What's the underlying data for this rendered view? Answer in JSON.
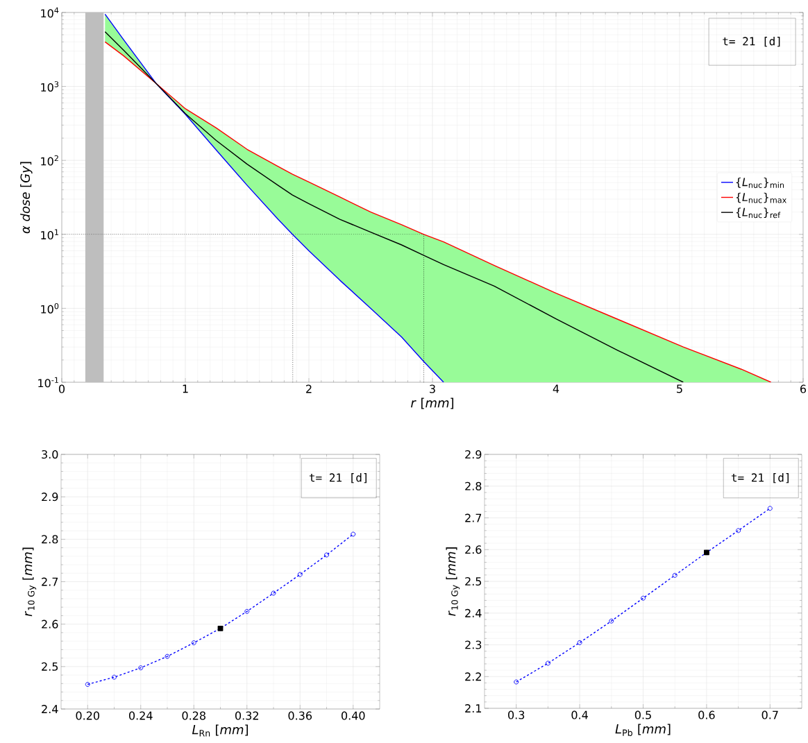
{
  "chart_data": [
    {
      "type": "line",
      "xlabel": "*r*  [*mm*]",
      "ylabel": "*α dose*  [*Gy*]",
      "log": "y",
      "xlim": [
        0,
        6
      ],
      "ylim": [
        0.1,
        10000
      ],
      "xticks": [
        0,
        1,
        2,
        3,
        4,
        5,
        6
      ],
      "yticks": [
        {
          "value": 0.1,
          "label": "10$^{-1}$"
        },
        {
          "value": 1,
          "label": "10$^{0}$"
        },
        {
          "value": 10,
          "label": "10$^{1}$"
        },
        {
          "value": 100,
          "label": "10$^{2}$"
        },
        {
          "value": 1000,
          "label": "10$^{3}$"
        },
        {
          "value": 10000,
          "label": "10$^{4}$"
        }
      ],
      "grid": true,
      "legend": "right",
      "annotations": [
        "t= 21 [d]"
      ],
      "bands": [
        {
          "axis": "x",
          "from": 0.19,
          "to": 0.34,
          "color": "#bebebe"
        }
      ],
      "ref_lines": [
        {
          "axis": "y",
          "value": 10,
          "color": "#000000",
          "line_style": "dotted"
        },
        {
          "axis": "x",
          "value": 1.87,
          "color": "#000000",
          "line_style": "dotted"
        },
        {
          "axis": "x",
          "value": 2.93,
          "color": "#000000",
          "line_style": "dotted"
        }
      ],
      "series": [
        {
          "name": "{*L*$_{nuc}$}$_{min}$",
          "color": "#0000ff",
          "values": [
            9500,
            4300,
            1100,
            420,
            138,
            46,
            16,
            10,
            6.0,
            2.4,
            1.0,
            0.41,
            0.19,
            0.1,
            null,
            null,
            null,
            null,
            null,
            null
          ]
        },
        {
          "name": "{*L*$_{nuc}$}$_{max}$",
          "color": "#ff0000",
          "values": [
            4000,
            2600,
            1100,
            500,
            275,
            141,
            83,
            65,
            51,
            32,
            20,
            13.5,
            10,
            7.9,
            3.8,
            1.6,
            0.71,
            0.3,
            0.15,
            0.1
          ]
        },
        {
          "name": "{*L*$_{nuc}$}$_{ref}$",
          "color": "#000000",
          "values": [
            5500,
            3100,
            1100,
            430,
            186,
            89,
            46,
            34,
            26,
            16,
            10.7,
            7.2,
            5.2,
            3.9,
            2.0,
            0.72,
            0.27,
            0.1,
            null,
            null
          ],
          "lower": [
            9500,
            4300,
            1100,
            420,
            138,
            46,
            16,
            10,
            6.0,
            2.4,
            1.0,
            0.41,
            0.19,
            0.1,
            0.1,
            0.1,
            0.1,
            0.1,
            0.1,
            0.1
          ],
          "upper": [
            4000,
            2600,
            1100,
            500,
            275,
            141,
            83,
            65,
            51,
            32,
            20,
            13.5,
            10,
            7.9,
            3.8,
            1.6,
            0.71,
            0.3,
            0.15,
            0.1
          ]
        }
      ],
      "x": [
        0.35,
        0.5,
        0.763,
        1.0,
        1.25,
        1.5,
        1.75,
        1.867,
        2.0,
        2.25,
        2.5,
        2.75,
        2.93,
        3.09,
        3.5,
        4.0,
        4.5,
        5.03,
        5.5,
        5.74
      ]
    },
    {
      "type": "line",
      "xlabel": "*L*$_{Rn}$  [*mm*]",
      "ylabel": "*r*$_{10 Gy}$  [*mm*]",
      "xlim": [
        0.18,
        0.42
      ],
      "ylim": [
        2.4,
        3.0
      ],
      "xticks": [
        {
          "value": 0.2,
          "label": "0.20"
        },
        {
          "value": 0.24,
          "label": "0.24"
        },
        {
          "value": 0.28,
          "label": "0.28"
        },
        {
          "value": 0.32,
          "label": "0.32"
        },
        {
          "value": 0.36,
          "label": "0.36"
        },
        {
          "value": 0.4,
          "label": "0.40"
        }
      ],
      "yticks": [
        2.4,
        2.5,
        2.6,
        2.7,
        2.8,
        2.9,
        {
          "value": 3.0,
          "label": "3.0"
        }
      ],
      "grid": true,
      "annotations": [
        "t= 21 [d]"
      ],
      "series": [
        {
          "color": "#0000ff",
          "marker": "circle",
          "line_style": "dashed",
          "x": [
            0.2,
            0.22,
            0.24,
            0.26,
            0.28,
            0.3,
            0.32,
            0.34,
            0.36,
            0.38,
            0.4
          ],
          "values": [
            2.458,
            2.475,
            2.497,
            2.524,
            2.556,
            2.59,
            2.63,
            2.673,
            2.717,
            2.763,
            2.812
          ]
        },
        {
          "type": "scatter",
          "color": "#000000",
          "marker": "square",
          "x": [
            0.3
          ],
          "values": [
            2.59
          ]
        }
      ]
    },
    {
      "type": "line",
      "xlabel": "*L*$_{Pb}$  [*mm*]",
      "ylabel": "*r*$_{10 Gy}$  [*mm*]",
      "xlim": [
        0.25,
        0.75
      ],
      "ylim": [
        2.1,
        2.9
      ],
      "xticks": [
        0.3,
        0.4,
        0.5,
        0.6,
        0.7
      ],
      "yticks": [
        2.1,
        2.2,
        2.3,
        2.4,
        2.5,
        2.6,
        2.7,
        2.8,
        2.9
      ],
      "grid": true,
      "annotations": [
        "t= 21 [d]"
      ],
      "series": [
        {
          "color": "#0000ff",
          "marker": "circle",
          "line_style": "dashed",
          "x": [
            0.3,
            0.35,
            0.4,
            0.45,
            0.5,
            0.55,
            0.6,
            0.65,
            0.7
          ],
          "values": [
            2.183,
            2.242,
            2.307,
            2.375,
            2.447,
            2.519,
            2.591,
            2.66,
            2.73
          ]
        },
        {
          "type": "scatter",
          "color": "#000000",
          "marker": "square",
          "x": [
            0.6
          ],
          "values": [
            2.591
          ]
        }
      ]
    }
  ]
}
